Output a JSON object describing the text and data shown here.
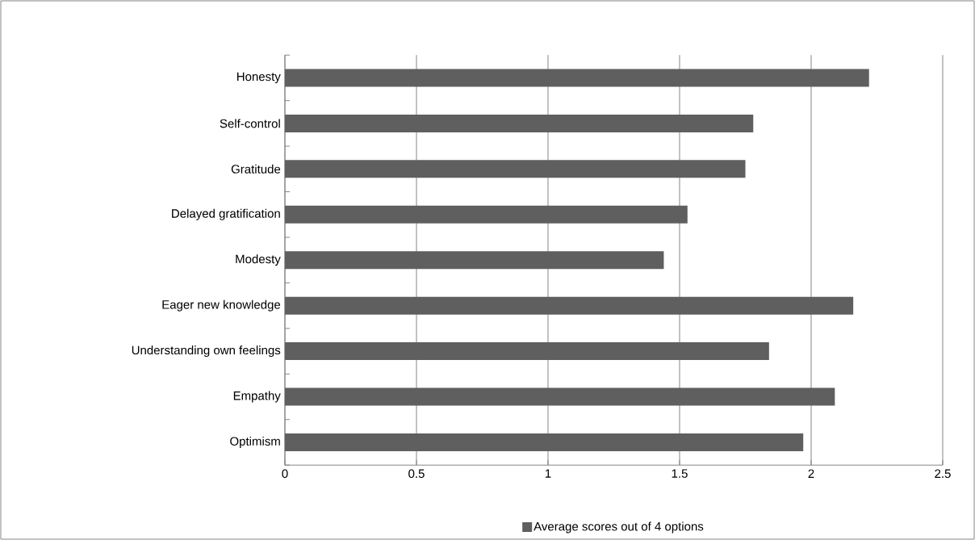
{
  "chart_data": {
    "type": "bar",
    "orientation": "horizontal",
    "categories": [
      "Honesty",
      "Self-control",
      "Gratitude",
      "Delayed gratification",
      "Modesty",
      "Eager new knowledge",
      "Understanding own feelings",
      "Empathy",
      "Optimism"
    ],
    "series": [
      {
        "name": "Average scores out of 4 options",
        "color": "#5f5f5f",
        "values": [
          2.22,
          1.78,
          1.75,
          1.53,
          1.44,
          2.16,
          1.84,
          2.09,
          1.97
        ]
      }
    ],
    "xlim": [
      0,
      2.5
    ],
    "xticks": [
      0,
      0.5,
      1,
      1.5,
      2,
      2.5
    ],
    "grid": "x",
    "legend": "bottom"
  }
}
